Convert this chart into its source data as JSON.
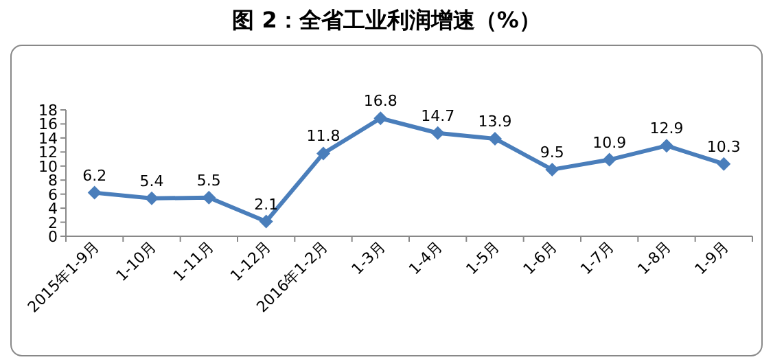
{
  "chart_data": {
    "type": "line",
    "title": "图 2：全省工业利润增速（%）",
    "categories": [
      "2015年1-9月",
      "1-10月",
      "1-11月",
      "1-12月",
      "2016年1-2月",
      "1-3月",
      "1-4月",
      "1-5月",
      "1-6月",
      "1-7月",
      "1-8月",
      "1-9月"
    ],
    "series": [
      {
        "color": "#4a7ebb",
        "values": [
          6.2,
          5.4,
          5.5,
          2.1,
          11.8,
          16.8,
          14.7,
          13.9,
          9.5,
          10.9,
          12.9,
          10.3
        ]
      }
    ],
    "ylim": [
      0,
      18
    ],
    "yticks": [
      0,
      2,
      4,
      6,
      8,
      10,
      12,
      14,
      16,
      18
    ],
    "marker": "diamond",
    "data_labels": true
  }
}
